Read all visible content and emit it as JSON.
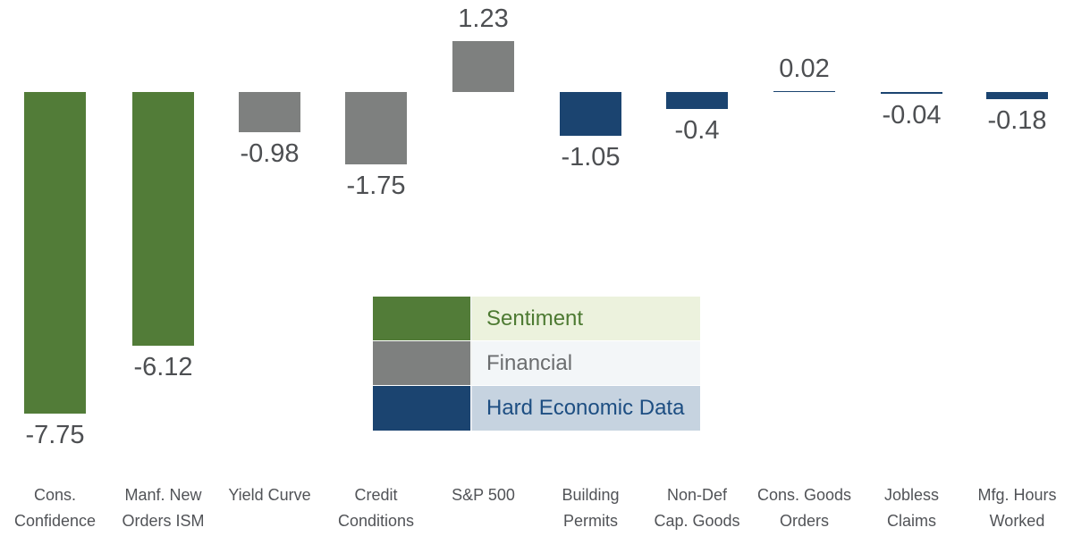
{
  "chart_data": {
    "type": "bar",
    "title": "",
    "xlabel": "",
    "ylabel": "",
    "grid": false,
    "axes_visible": false,
    "baseline": 0,
    "ylim": [
      -8.4,
      1.6
    ],
    "legend_position": "center-middle",
    "categories": [
      "Cons. Confidence",
      "Manf. New Orders ISM",
      "Yield Curve",
      "Credit Conditions",
      "S&P 500",
      "Building Permits",
      "Non-Def Cap. Goods",
      "Cons. Goods Orders",
      "Jobless Claims",
      "Mfg. Hours Worked"
    ],
    "category_lines": [
      [
        "Cons.",
        "Confidence"
      ],
      [
        "Manf. New",
        "Orders ISM"
      ],
      [
        "Yield Curve"
      ],
      [
        "Credit",
        "Conditions"
      ],
      [
        "S&P 500"
      ],
      [
        "Building",
        "Permits"
      ],
      [
        "Non-Def",
        "Cap. Goods"
      ],
      [
        "Cons. Goods",
        "Orders"
      ],
      [
        "Jobless",
        "Claims"
      ],
      [
        "Mfg. Hours",
        "Worked"
      ]
    ],
    "values": [
      -7.75,
      -6.12,
      -0.98,
      -1.75,
      1.23,
      -1.05,
      -0.4,
      0.02,
      -0.04,
      -0.18
    ],
    "value_labels": [
      "-7.75",
      "-6.12",
      "-0.98",
      "-1.75",
      "1.23",
      "-1.05",
      "-0.4",
      "0.02",
      "-0.04",
      "-0.18"
    ],
    "groups": [
      "Sentiment",
      "Sentiment",
      "Financial",
      "Financial",
      "Financial",
      "Hard Economic Data",
      "Hard Economic Data",
      "Hard Economic Data",
      "Hard Economic Data",
      "Hard Economic Data"
    ],
    "group_colors": {
      "Sentiment": "#527C38",
      "Financial": "#7E807F",
      "Hard Economic Data": "#1B4470"
    },
    "legend": [
      {
        "label": "Sentiment",
        "swatch_color": "#527C38",
        "row_bg": "#ECF2DD",
        "text_color": "#4D7A32"
      },
      {
        "label": "Financial",
        "swatch_color": "#7E807F",
        "row_bg": "#F3F6F8",
        "text_color": "#6B6D6F"
      },
      {
        "label": "Hard Economic Data",
        "swatch_color": "#1B4470",
        "row_bg": "#C6D3E0",
        "text_color": "#1D4E82"
      }
    ]
  },
  "text_colors": {
    "value_label": "#4D4F52",
    "category_label": "#515357"
  },
  "background": "#FFFFFF"
}
